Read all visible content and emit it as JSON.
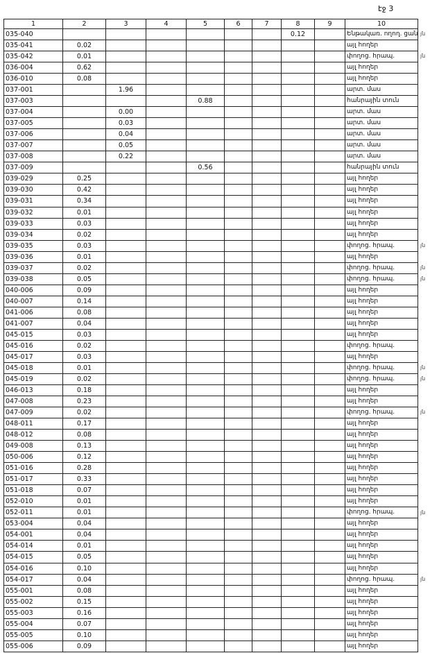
{
  "header": {
    "page": "էջ 3"
  },
  "table": {
    "columns": [
      "1",
      "2",
      "3",
      "4",
      "5",
      "6",
      "7",
      "8",
      "9",
      "10"
    ],
    "rows": [
      {
        "cells": [
          "035-040",
          null,
          null,
          null,
          null,
          null,
          null,
          "0.12",
          null,
          "Ենթակառ. ողող. ցանց"
        ],
        "note": "յն"
      },
      {
        "cells": [
          "035-041",
          "0.02",
          null,
          null,
          null,
          null,
          null,
          null,
          null,
          "այլ հողեր"
        ]
      },
      {
        "cells": [
          "035-042",
          "0.01",
          null,
          null,
          null,
          null,
          null,
          null,
          null,
          "փողոց. հրապ."
        ],
        "note": "յն"
      },
      {
        "cells": [
          "036-004",
          "0.62",
          null,
          null,
          null,
          null,
          null,
          null,
          null,
          "այլ հողեր"
        ]
      },
      {
        "cells": [
          "036-010",
          "0.08",
          null,
          null,
          null,
          null,
          null,
          null,
          null,
          "այլ հողեր"
        ]
      },
      {
        "cells": [
          "037-001",
          null,
          "1.96",
          null,
          null,
          null,
          null,
          null,
          null,
          "արտ. մաս"
        ]
      },
      {
        "cells": [
          "037-003",
          null,
          null,
          null,
          "0.88",
          null,
          null,
          null,
          null,
          "հանրային տուն"
        ]
      },
      {
        "cells": [
          "037-004",
          null,
          "0.00",
          null,
          null,
          null,
          null,
          null,
          null,
          "արտ. մաս"
        ]
      },
      {
        "cells": [
          "037-005",
          null,
          "0.03",
          null,
          null,
          null,
          null,
          null,
          null,
          "արտ. մաս"
        ]
      },
      {
        "cells": [
          "037-006",
          null,
          "0.04",
          null,
          null,
          null,
          null,
          null,
          null,
          "արտ. մաս"
        ]
      },
      {
        "cells": [
          "037-007",
          null,
          "0.05",
          null,
          null,
          null,
          null,
          null,
          null,
          "արտ. մաս"
        ]
      },
      {
        "cells": [
          "037-008",
          null,
          "0.22",
          null,
          null,
          null,
          null,
          null,
          null,
          "արտ. մաս"
        ]
      },
      {
        "cells": [
          "037-009",
          null,
          null,
          null,
          "0.56",
          null,
          null,
          null,
          null,
          "հանրային տուն"
        ]
      },
      {
        "cells": [
          "039-029",
          "0.25",
          null,
          null,
          null,
          null,
          null,
          null,
          null,
          "այլ հողեր"
        ]
      },
      {
        "cells": [
          "039-030",
          "0.42",
          null,
          null,
          null,
          null,
          null,
          null,
          null,
          "այլ հողեր"
        ]
      },
      {
        "cells": [
          "039-031",
          "0.34",
          null,
          null,
          null,
          null,
          null,
          null,
          null,
          "այլ հողեր"
        ]
      },
      {
        "cells": [
          "039-032",
          "0.01",
          null,
          null,
          null,
          null,
          null,
          null,
          null,
          "այլ հողեր"
        ]
      },
      {
        "cells": [
          "039-033",
          "0.03",
          null,
          null,
          null,
          null,
          null,
          null,
          null,
          "այլ հողեր"
        ]
      },
      {
        "cells": [
          "039-034",
          "0.02",
          null,
          null,
          null,
          null,
          null,
          null,
          null,
          "այլ հողեր"
        ]
      },
      {
        "cells": [
          "039-035",
          "0.03",
          null,
          null,
          null,
          null,
          null,
          null,
          null,
          "փողոց. հրապ."
        ],
        "note": "յն"
      },
      {
        "cells": [
          "039-036",
          "0.01",
          null,
          null,
          null,
          null,
          null,
          null,
          null,
          "այլ հողեր"
        ]
      },
      {
        "cells": [
          "039-037",
          "0.02",
          null,
          null,
          null,
          null,
          null,
          null,
          null,
          "փողոց. հրապ."
        ],
        "note": "յն"
      },
      {
        "cells": [
          "039-038",
          "0.05",
          null,
          null,
          null,
          null,
          null,
          null,
          null,
          "փողոց. հրապ."
        ],
        "note": "յն"
      },
      {
        "cells": [
          "040-006",
          "0.09",
          null,
          null,
          null,
          null,
          null,
          null,
          null,
          "այլ հողեր"
        ]
      },
      {
        "cells": [
          "040-007",
          "0.14",
          null,
          null,
          null,
          null,
          null,
          null,
          null,
          "այլ հողեր"
        ]
      },
      {
        "cells": [
          "041-006",
          "0.08",
          null,
          null,
          null,
          null,
          null,
          null,
          null,
          "այլ հողեր"
        ]
      },
      {
        "cells": [
          "041-007",
          "0.04",
          null,
          null,
          null,
          null,
          null,
          null,
          null,
          "այլ հողեր"
        ]
      },
      {
        "cells": [
          "045-015",
          "0.03",
          null,
          null,
          null,
          null,
          null,
          null,
          null,
          "այլ հողեր"
        ]
      },
      {
        "cells": [
          "045-016",
          "0.02",
          null,
          null,
          null,
          null,
          null,
          null,
          null,
          "փողոց. հրապ."
        ]
      },
      {
        "cells": [
          "045-017",
          "0.03",
          null,
          null,
          null,
          null,
          null,
          null,
          null,
          "այլ հողեր"
        ]
      },
      {
        "cells": [
          "045-018",
          "0.01",
          null,
          null,
          null,
          null,
          null,
          null,
          null,
          "փողոց. հրապ."
        ],
        "note": "յն"
      },
      {
        "cells": [
          "045-019",
          "0.02",
          null,
          null,
          null,
          null,
          null,
          null,
          null,
          "փողոց. հրապ."
        ],
        "note": "յն"
      },
      {
        "cells": [
          "046-013",
          "0.18",
          null,
          null,
          null,
          null,
          null,
          null,
          null,
          "այլ հողեր"
        ]
      },
      {
        "cells": [
          "047-008",
          "0.23",
          null,
          null,
          null,
          null,
          null,
          null,
          null,
          "այլ հողեր"
        ]
      },
      {
        "cells": [
          "047-009",
          "0.02",
          null,
          null,
          null,
          null,
          null,
          null,
          null,
          "փողոց. հրապ."
        ],
        "note": "յն"
      },
      {
        "cells": [
          "048-011",
          "0.17",
          null,
          null,
          null,
          null,
          null,
          null,
          null,
          "այլ հողեր"
        ]
      },
      {
        "cells": [
          "048-012",
          "0.08",
          null,
          null,
          null,
          null,
          null,
          null,
          null,
          "այլ հողեր"
        ]
      },
      {
        "cells": [
          "049-008",
          "0.13",
          null,
          null,
          null,
          null,
          null,
          null,
          null,
          "այլ հողեր"
        ]
      },
      {
        "cells": [
          "050-006",
          "0.12",
          null,
          null,
          null,
          null,
          null,
          null,
          null,
          "այլ հողեր"
        ]
      },
      {
        "cells": [
          "051-016",
          "0.28",
          null,
          null,
          null,
          null,
          null,
          null,
          null,
          "այլ հողեր"
        ]
      },
      {
        "cells": [
          "051-017",
          "0.33",
          null,
          null,
          null,
          null,
          null,
          null,
          null,
          "այլ հողեր"
        ]
      },
      {
        "cells": [
          "051-018",
          "0.07",
          null,
          null,
          null,
          null,
          null,
          null,
          null,
          "այլ հողեր"
        ]
      },
      {
        "cells": [
          "052-010",
          "0.01",
          null,
          null,
          null,
          null,
          null,
          null,
          null,
          "այլ հողեր"
        ]
      },
      {
        "cells": [
          "052-011",
          "0.01",
          null,
          null,
          null,
          null,
          null,
          null,
          null,
          "փողոց. հրապ."
        ],
        "note": "յն"
      },
      {
        "cells": [
          "053-004",
          "0.04",
          null,
          null,
          null,
          null,
          null,
          null,
          null,
          "այլ հողեր"
        ]
      },
      {
        "cells": [
          "054-001",
          "0.04",
          null,
          null,
          null,
          null,
          null,
          null,
          null,
          "այլ հողեր"
        ]
      },
      {
        "cells": [
          "054-014",
          "0.01",
          null,
          null,
          null,
          null,
          null,
          null,
          null,
          "այլ հողեր"
        ]
      },
      {
        "cells": [
          "054-015",
          "0.05",
          null,
          null,
          null,
          null,
          null,
          null,
          null,
          "այլ հողեր"
        ]
      },
      {
        "cells": [
          "054-016",
          "0.10",
          null,
          null,
          null,
          null,
          null,
          null,
          null,
          "այլ հողեր"
        ]
      },
      {
        "cells": [
          "054-017",
          "0.04",
          null,
          null,
          null,
          null,
          null,
          null,
          null,
          "փողոց. հրապ."
        ],
        "note": "յն"
      },
      {
        "cells": [
          "055-001",
          "0.08",
          null,
          null,
          null,
          null,
          null,
          null,
          null,
          "այլ հողեր"
        ]
      },
      {
        "cells": [
          "055-002",
          "0.15",
          null,
          null,
          null,
          null,
          null,
          null,
          null,
          "այլ հողեր"
        ]
      },
      {
        "cells": [
          "055-003",
          "0.16",
          null,
          null,
          null,
          null,
          null,
          null,
          null,
          "այլ հողեր"
        ]
      },
      {
        "cells": [
          "055-004",
          "0.07",
          null,
          null,
          null,
          null,
          null,
          null,
          null,
          "այլ հողեր"
        ]
      },
      {
        "cells": [
          "055-005",
          "0.10",
          null,
          null,
          null,
          null,
          null,
          null,
          null,
          "այլ հողեր"
        ]
      },
      {
        "cells": [
          "055-006",
          "0.09",
          null,
          null,
          null,
          null,
          null,
          null,
          null,
          "այլ հողեր"
        ]
      }
    ]
  }
}
